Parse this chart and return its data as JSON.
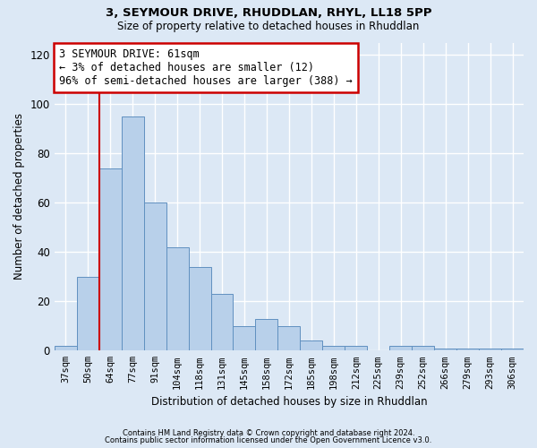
{
  "title1": "3, SEYMOUR DRIVE, RHUDDLAN, RHYL, LL18 5PP",
  "title2": "Size of property relative to detached houses in Rhuddlan",
  "xlabel": "Distribution of detached houses by size in Rhuddlan",
  "ylabel": "Number of detached properties",
  "categories": [
    "37sqm",
    "50sqm",
    "64sqm",
    "77sqm",
    "91sqm",
    "104sqm",
    "118sqm",
    "131sqm",
    "145sqm",
    "158sqm",
    "172sqm",
    "185sqm",
    "198sqm",
    "212sqm",
    "225sqm",
    "239sqm",
    "252sqm",
    "266sqm",
    "279sqm",
    "293sqm",
    "306sqm"
  ],
  "values": [
    2,
    30,
    74,
    95,
    60,
    42,
    34,
    23,
    10,
    13,
    10,
    4,
    2,
    2,
    0,
    2,
    2,
    1,
    1,
    1,
    1
  ],
  "bar_color": "#b8d0ea",
  "bar_edge_color": "#6090c0",
  "red_line_color": "#cc0000",
  "red_line_x": 1.5,
  "annotation_text": "3 SEYMOUR DRIVE: 61sqm\n← 3% of detached houses are smaller (12)\n96% of semi-detached houses are larger (388) →",
  "annotation_box_color": "#ffffff",
  "annotation_box_edge": "#cc0000",
  "ylim": [
    0,
    125
  ],
  "yticks": [
    0,
    20,
    40,
    60,
    80,
    100,
    120
  ],
  "footer1": "Contains HM Land Registry data © Crown copyright and database right 2024.",
  "footer2": "Contains public sector information licensed under the Open Government Licence v3.0.",
  "bg_color": "#dce8f5",
  "plot_bg_color": "#dce8f5"
}
